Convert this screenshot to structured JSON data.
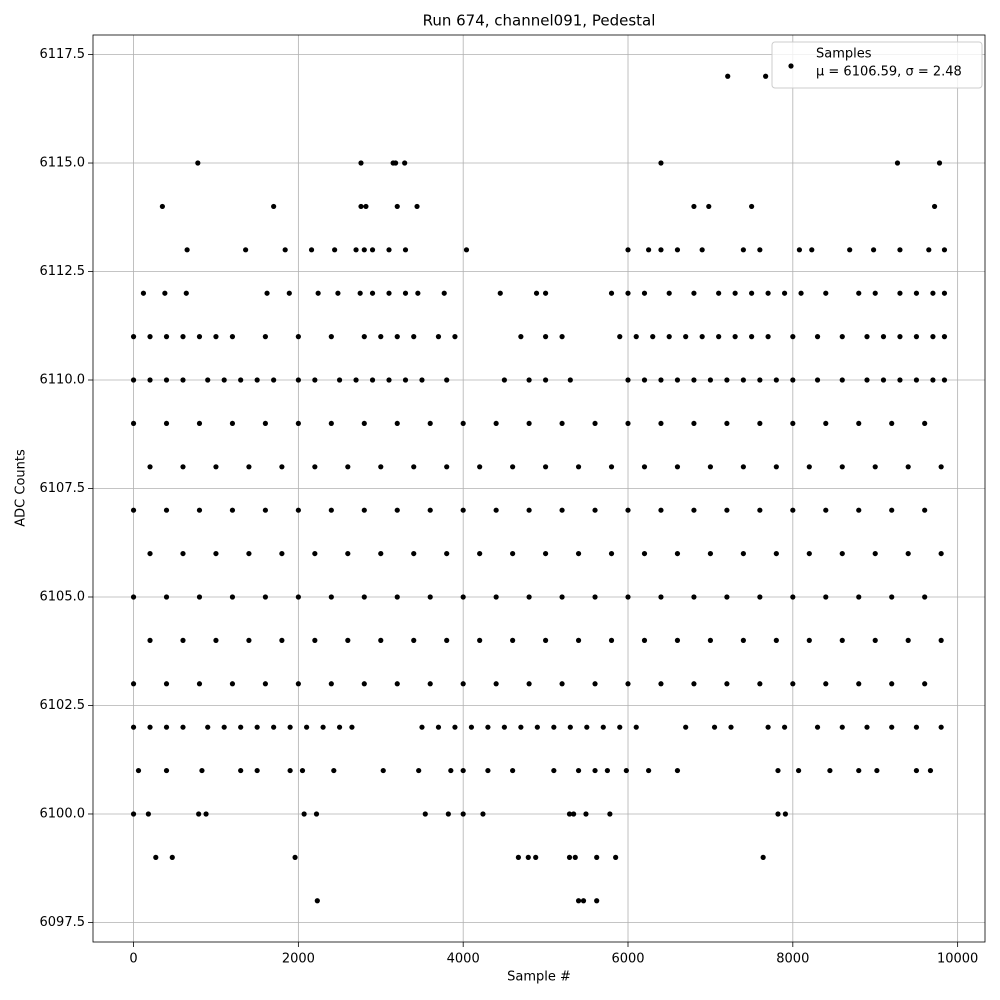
{
  "chart_data": {
    "type": "scatter",
    "title": "Run 674, channel091, Pedestal",
    "x_label": "Sample #",
    "y_label": "ADC Counts",
    "xlim": [
      -492,
      10332
    ],
    "ylim": [
      6097.05,
      6117.95
    ],
    "xticks": [
      0,
      2000,
      4000,
      6000,
      8000,
      10000
    ],
    "yticks": [
      6097.5,
      {
        "value": 6100,
        "label": "6100.0"
      },
      6102.5,
      {
        "value": 6105,
        "label": "6105.0"
      },
      6107.5,
      {
        "value": 6110,
        "label": "6110.0"
      },
      6112.5,
      {
        "value": 6115,
        "label": "6115.0"
      },
      6117.5
    ],
    "grid": true,
    "legend_position": "upper right",
    "legend_stats": "μ = 6106.59, σ = 2.48",
    "series": [
      {
        "name": "Samples",
        "color": "#000000",
        "x": [
          7210,
          7670,
          780,
          2760,
          3150,
          3180,
          3290,
          6400,
          9270,
          9780,
          350,
          1700,
          2760,
          2820,
          3200,
          3440,
          6800,
          6980,
          7500,
          9720,
          650,
          1360,
          1840,
          2160,
          2440,
          2700,
          2800,
          2900,
          3100,
          3300,
          4040,
          6000,
          6250,
          6400,
          6600,
          6900,
          7400,
          7600,
          8080,
          8230,
          8690,
          8980,
          9300,
          9650,
          9840,
          120,
          380,
          640,
          1620,
          1890,
          2240,
          2480,
          2750,
          2900,
          3100,
          3300,
          3450,
          3770,
          4450,
          4890,
          5000,
          5800,
          6000,
          6200,
          6500,
          6800,
          7100,
          7300,
          7500,
          7700,
          7900,
          8100,
          8400,
          8800,
          9000,
          9300,
          9500,
          9700,
          9840,
          0,
          200,
          400,
          600,
          800,
          1000,
          1200,
          1600,
          2000,
          2400,
          2800,
          3000,
          3200,
          3400,
          3700,
          3900,
          4700,
          5000,
          5200,
          5900,
          6100,
          6300,
          6500,
          6700,
          6900,
          7100,
          7300,
          7500,
          7700,
          8000,
          8300,
          8600,
          8900,
          9100,
          9300,
          9500,
          9700,
          9840,
          0,
          200,
          400,
          600,
          900,
          1100,
          1300,
          1500,
          1700,
          2000,
          2200,
          2500,
          2700,
          2900,
          3100,
          3300,
          3500,
          3800,
          4500,
          4800,
          5000,
          5300,
          6000,
          6200,
          6400,
          6600,
          6800,
          7000,
          7200,
          7400,
          7600,
          7800,
          8000,
          8300,
          8600,
          8900,
          9100,
          9300,
          9500,
          9700,
          9840,
          0,
          400,
          800,
          1200,
          1600,
          2000,
          2400,
          2800,
          3200,
          3600,
          4000,
          4400,
          4800,
          5200,
          5600,
          6000,
          6400,
          6800,
          7200,
          7600,
          8000,
          8400,
          8800,
          9200,
          9600,
          200,
          600,
          1000,
          1400,
          1800,
          2200,
          2600,
          3000,
          3400,
          3800,
          4200,
          4600,
          5000,
          5400,
          5800,
          6200,
          6600,
          7000,
          7400,
          7800,
          8200,
          8600,
          9000,
          9400,
          9800,
          0,
          400,
          800,
          1200,
          1600,
          2000,
          2400,
          2800,
          3200,
          3600,
          4000,
          4400,
          4800,
          5200,
          5600,
          6000,
          6400,
          6800,
          7200,
          7600,
          8000,
          8400,
          8800,
          9200,
          9600,
          200,
          600,
          1000,
          1400,
          1800,
          2200,
          2600,
          3000,
          3400,
          3800,
          4200,
          4600,
          5000,
          5400,
          5800,
          6200,
          6600,
          7000,
          7400,
          7800,
          8200,
          8600,
          9000,
          9400,
          9800,
          0,
          400,
          800,
          1200,
          1600,
          2000,
          2400,
          2800,
          3200,
          3600,
          4000,
          4400,
          4800,
          5200,
          5600,
          6000,
          6400,
          6800,
          7200,
          7600,
          8000,
          8400,
          8800,
          9200,
          9600,
          200,
          600,
          1000,
          1400,
          1800,
          2200,
          2600,
          3000,
          3400,
          3800,
          4200,
          4600,
          5000,
          5400,
          5800,
          6200,
          6600,
          7000,
          7400,
          7800,
          8200,
          8600,
          9000,
          9400,
          9800,
          0,
          400,
          800,
          1200,
          1600,
          2000,
          2400,
          2800,
          3200,
          3600,
          4000,
          4400,
          4800,
          5200,
          5600,
          6000,
          6400,
          6800,
          7200,
          7600,
          8000,
          8400,
          8800,
          9200,
          9600,
          0,
          200,
          400,
          600,
          900,
          1100,
          1300,
          1500,
          1700,
          1900,
          2100,
          2300,
          2500,
          2650,
          3500,
          3700,
          3900,
          4100,
          4300,
          4500,
          4700,
          4900,
          5100,
          5300,
          5500,
          5700,
          5900,
          6100,
          6700,
          7050,
          7250,
          7700,
          7900,
          8300,
          8600,
          8900,
          9200,
          9500,
          9800,
          60,
          400,
          830,
          1300,
          1500,
          1900,
          2050,
          2430,
          3030,
          3460,
          3850,
          4000,
          4300,
          4600,
          5100,
          5400,
          5600,
          5750,
          5980,
          6250,
          6600,
          7820,
          8070,
          8450,
          8800,
          9020,
          9500,
          9670,
          0,
          180,
          790,
          880,
          2070,
          2220,
          3540,
          3820,
          4000,
          4240,
          5290,
          5340,
          5490,
          5780,
          7820,
          7910,
          270,
          470,
          1960,
          4670,
          4790,
          4880,
          5290,
          5360,
          5620,
          5850,
          7640,
          2230,
          5400,
          5460,
          5620
        ],
        "values": [
          6117,
          6117,
          6115,
          6115,
          6115,
          6115,
          6115,
          6115,
          6115,
          6115,
          6114,
          6114,
          6114,
          6114,
          6114,
          6114,
          6114,
          6114,
          6114,
          6114,
          6113,
          6113,
          6113,
          6113,
          6113,
          6113,
          6113,
          6113,
          6113,
          6113,
          6113,
          6113,
          6113,
          6113,
          6113,
          6113,
          6113,
          6113,
          6113,
          6113,
          6113,
          6113,
          6113,
          6113,
          6113,
          6112,
          6112,
          6112,
          6112,
          6112,
          6112,
          6112,
          6112,
          6112,
          6112,
          6112,
          6112,
          6112,
          6112,
          6112,
          6112,
          6112,
          6112,
          6112,
          6112,
          6112,
          6112,
          6112,
          6112,
          6112,
          6112,
          6112,
          6112,
          6112,
          6112,
          6112,
          6112,
          6112,
          6112,
          6111,
          6111,
          6111,
          6111,
          6111,
          6111,
          6111,
          6111,
          6111,
          6111,
          6111,
          6111,
          6111,
          6111,
          6111,
          6111,
          6111,
          6111,
          6111,
          6111,
          6111,
          6111,
          6111,
          6111,
          6111,
          6111,
          6111,
          6111,
          6111,
          6111,
          6111,
          6111,
          6111,
          6111,
          6111,
          6111,
          6111,
          6111,
          6110,
          6110,
          6110,
          6110,
          6110,
          6110,
          6110,
          6110,
          6110,
          6110,
          6110,
          6110,
          6110,
          6110,
          6110,
          6110,
          6110,
          6110,
          6110,
          6110,
          6110,
          6110,
          6110,
          6110,
          6110,
          6110,
          6110,
          6110,
          6110,
          6110,
          6110,
          6110,
          6110,
          6110,
          6110,
          6110,
          6110,
          6110,
          6110,
          6110,
          6110,
          6109,
          6109,
          6109,
          6109,
          6109,
          6109,
          6109,
          6109,
          6109,
          6109,
          6109,
          6109,
          6109,
          6109,
          6109,
          6109,
          6109,
          6109,
          6109,
          6109,
          6109,
          6109,
          6109,
          6109,
          6109,
          6108,
          6108,
          6108,
          6108,
          6108,
          6108,
          6108,
          6108,
          6108,
          6108,
          6108,
          6108,
          6108,
          6108,
          6108,
          6108,
          6108,
          6108,
          6108,
          6108,
          6108,
          6108,
          6108,
          6108,
          6108,
          6107,
          6107,
          6107,
          6107,
          6107,
          6107,
          6107,
          6107,
          6107,
          6107,
          6107,
          6107,
          6107,
          6107,
          6107,
          6107,
          6107,
          6107,
          6107,
          6107,
          6107,
          6107,
          6107,
          6107,
          6107,
          6106,
          6106,
          6106,
          6106,
          6106,
          6106,
          6106,
          6106,
          6106,
          6106,
          6106,
          6106,
          6106,
          6106,
          6106,
          6106,
          6106,
          6106,
          6106,
          6106,
          6106,
          6106,
          6106,
          6106,
          6106,
          6105,
          6105,
          6105,
          6105,
          6105,
          6105,
          6105,
          6105,
          6105,
          6105,
          6105,
          6105,
          6105,
          6105,
          6105,
          6105,
          6105,
          6105,
          6105,
          6105,
          6105,
          6105,
          6105,
          6105,
          6105,
          6104,
          6104,
          6104,
          6104,
          6104,
          6104,
          6104,
          6104,
          6104,
          6104,
          6104,
          6104,
          6104,
          6104,
          6104,
          6104,
          6104,
          6104,
          6104,
          6104,
          6104,
          6104,
          6104,
          6104,
          6104,
          6103,
          6103,
          6103,
          6103,
          6103,
          6103,
          6103,
          6103,
          6103,
          6103,
          6103,
          6103,
          6103,
          6103,
          6103,
          6103,
          6103,
          6103,
          6103,
          6103,
          6103,
          6103,
          6103,
          6103,
          6103,
          6102,
          6102,
          6102,
          6102,
          6102,
          6102,
          6102,
          6102,
          6102,
          6102,
          6102,
          6102,
          6102,
          6102,
          6102,
          6102,
          6102,
          6102,
          6102,
          6102,
          6102,
          6102,
          6102,
          6102,
          6102,
          6102,
          6102,
          6102,
          6102,
          6102,
          6102,
          6102,
          6102,
          6102,
          6102,
          6102,
          6102,
          6102,
          6102,
          6101,
          6101,
          6101,
          6101,
          6101,
          6101,
          6101,
          6101,
          6101,
          6101,
          6101,
          6101,
          6101,
          6101,
          6101,
          6101,
          6101,
          6101,
          6101,
          6101,
          6101,
          6101,
          6101,
          6101,
          6101,
          6101,
          6101,
          6101,
          6100,
          6100,
          6100,
          6100,
          6100,
          6100,
          6100,
          6100,
          6100,
          6100,
          6100,
          6100,
          6100,
          6100,
          6100,
          6100,
          6099,
          6099,
          6099,
          6099,
          6099,
          6099,
          6099,
          6099,
          6099,
          6099,
          6099,
          6098,
          6098,
          6098,
          6098
        ]
      }
    ]
  }
}
